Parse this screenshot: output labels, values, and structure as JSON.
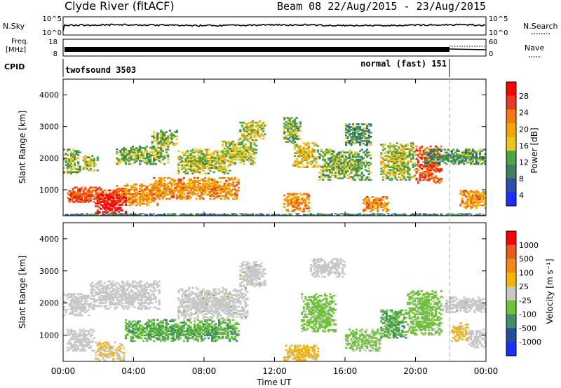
{
  "header": {
    "station": "Clyde River (fitACF)",
    "beam_info": "Beam 08  22/Aug/2015 - 23/Aug/2015"
  },
  "status_panels": {
    "nsky_label": "N.Sky",
    "nsearch_label": "N.Search",
    "nsky_ticks": [
      "10^5",
      "10^0"
    ],
    "nsearch_ticks": [
      "10^5",
      "10^0"
    ],
    "freq_label_1": "Freq.",
    "freq_label_2": "[MHz]",
    "freq_ticks": [
      "18",
      "8"
    ],
    "nave_label": "Nave",
    "nave_ticks": [
      "60",
      "0"
    ],
    "cpid_label": "CPID",
    "cpid_1": "twofsound 3503",
    "cpid_2": "normal (fast) 151"
  },
  "colors": {
    "power_scale": [
      "#1a2fff",
      "#2d4fa8",
      "#3f7f5f",
      "#4aa545",
      "#e8c820",
      "#f5a300",
      "#f07a10",
      "#e83a20",
      "#ff0000"
    ],
    "velocity_scale": [
      "#1a2fff",
      "#244f9a",
      "#3f8f6a",
      "#6fc23a",
      "#c8c8c8",
      "#f5b400",
      "#f08a10",
      "#e85a1a",
      "#ff0000"
    ]
  },
  "chart_data": [
    {
      "type": "heatmap",
      "name": "power",
      "ylabel": "Slant Range [km]",
      "yticks": [
        "1000",
        "2000",
        "3000",
        "4000"
      ],
      "colorbar_label": "Power [dB]",
      "colorbar_ticks": [
        "28",
        "24",
        "20",
        "16",
        "12",
        "8",
        "4"
      ],
      "ylim": [
        180,
        4500
      ],
      "clim": [
        0,
        30
      ],
      "xlim": [
        "00:00",
        "24:00"
      ],
      "regions": [
        {
          "t": [
            0.0,
            1.0
          ],
          "r": [
            1500,
            2300
          ],
          "v": 12
        },
        {
          "t": [
            1.0,
            2.0
          ],
          "r": [
            1600,
            2100
          ],
          "v": 14
        },
        {
          "t": [
            3.0,
            6.0
          ],
          "r": [
            1800,
            2400
          ],
          "v": 12
        },
        {
          "t": [
            5.0,
            6.5
          ],
          "r": [
            2400,
            2900
          ],
          "v": 12
        },
        {
          "t": [
            0.5,
            3.5
          ],
          "r": [
            600,
            1100
          ],
          "v": 24
        },
        {
          "t": [
            3.0,
            5.5
          ],
          "r": [
            500,
            1200
          ],
          "v": 20
        },
        {
          "t": [
            5.0,
            10.0
          ],
          "r": [
            700,
            1400
          ],
          "v": 20
        },
        {
          "t": [
            6.5,
            9.5
          ],
          "r": [
            1500,
            2300
          ],
          "v": 14
        },
        {
          "t": [
            9.0,
            11.0
          ],
          "r": [
            1800,
            2600
          ],
          "v": 14
        },
        {
          "t": [
            10.0,
            11.5
          ],
          "r": [
            2600,
            3200
          ],
          "v": 14
        },
        {
          "t": [
            1.8,
            3.6
          ],
          "r": [
            200,
            900
          ],
          "v": 28
        },
        {
          "t": [
            0.2,
            1.4
          ],
          "r": [
            600,
            1000
          ],
          "v": 24
        },
        {
          "t": [
            12.5,
            14.0
          ],
          "r": [
            300,
            900
          ],
          "v": 20
        },
        {
          "t": [
            13.0,
            14.5
          ],
          "r": [
            1700,
            2500
          ],
          "v": 16
        },
        {
          "t": [
            12.5,
            13.5
          ],
          "r": [
            2500,
            3300
          ],
          "v": 12
        },
        {
          "t": [
            14.5,
            17.5
          ],
          "r": [
            1300,
            2300
          ],
          "v": 12
        },
        {
          "t": [
            16.0,
            17.5
          ],
          "r": [
            2400,
            3100
          ],
          "v": 10
        },
        {
          "t": [
            17.0,
            18.5
          ],
          "r": [
            300,
            800
          ],
          "v": 20
        },
        {
          "t": [
            18.0,
            20.0
          ],
          "r": [
            1300,
            2500
          ],
          "v": 14
        },
        {
          "t": [
            20.0,
            21.5
          ],
          "r": [
            1200,
            2400
          ],
          "v": 24
        },
        {
          "t": [
            20.5,
            24.0
          ],
          "r": [
            1800,
            2300
          ],
          "v": 10
        },
        {
          "t": [
            22.5,
            24.0
          ],
          "r": [
            400,
            1000
          ],
          "v": 20
        },
        {
          "t": [
            0.0,
            24.0
          ],
          "r": [
            180,
            260
          ],
          "v": 8
        }
      ]
    },
    {
      "type": "heatmap",
      "name": "velocity",
      "ylabel": "Slant Range [km]",
      "yticks": [
        "1000",
        "2000",
        "3000",
        "4000"
      ],
      "colorbar_label": "Velocity [m s⁻¹]",
      "colorbar_ticks": [
        "1000",
        "500",
        "100",
        "25",
        "-25",
        "-100",
        "-500",
        "-1000"
      ],
      "ylim": [
        180,
        4500
      ],
      "clim": [
        -1000,
        1000
      ],
      "xlim": [
        "00:00",
        "24:00"
      ],
      "xticks": [
        "00:00",
        "04:00",
        "08:00",
        "12:00",
        "16:00",
        "20:00",
        "00:00"
      ],
      "xlabel": "Time UT",
      "regions": [
        {
          "t": [
            0.0,
            1.5
          ],
          "r": [
            1600,
            2300
          ],
          "v": 0
        },
        {
          "t": [
            1.5,
            5.5
          ],
          "r": [
            1800,
            2700
          ],
          "v": 0
        },
        {
          "t": [
            0.2,
            1.8
          ],
          "r": [
            500,
            1200
          ],
          "v": 0
        },
        {
          "t": [
            1.8,
            3.5
          ],
          "r": [
            200,
            800
          ],
          "v": 100
        },
        {
          "t": [
            3.5,
            10.0
          ],
          "r": [
            800,
            1500
          ],
          "v": -300
        },
        {
          "t": [
            6.5,
            10.5
          ],
          "r": [
            1500,
            2500
          ],
          "v": -60
        },
        {
          "t": [
            10.0,
            11.5
          ],
          "r": [
            2500,
            3300
          ],
          "v": -60
        },
        {
          "t": [
            12.5,
            14.5
          ],
          "r": [
            200,
            700
          ],
          "v": 150
        },
        {
          "t": [
            13.5,
            15.5
          ],
          "r": [
            1100,
            2300
          ],
          "v": -200
        },
        {
          "t": [
            14.0,
            16.0
          ],
          "r": [
            2800,
            3400
          ],
          "v": 0
        },
        {
          "t": [
            16.0,
            18.0
          ],
          "r": [
            500,
            1200
          ],
          "v": -150
        },
        {
          "t": [
            18.0,
            19.5
          ],
          "r": [
            900,
            1800
          ],
          "v": -300
        },
        {
          "t": [
            19.5,
            21.5
          ],
          "r": [
            1000,
            2400
          ],
          "v": -200
        },
        {
          "t": [
            21.5,
            24.0
          ],
          "r": [
            1700,
            2200
          ],
          "v": -60
        },
        {
          "t": [
            22.0,
            23.0
          ],
          "r": [
            800,
            1400
          ],
          "v": 150
        },
        {
          "t": [
            23.0,
            24.0
          ],
          "r": [
            600,
            1200
          ],
          "v": 0
        }
      ]
    }
  ]
}
